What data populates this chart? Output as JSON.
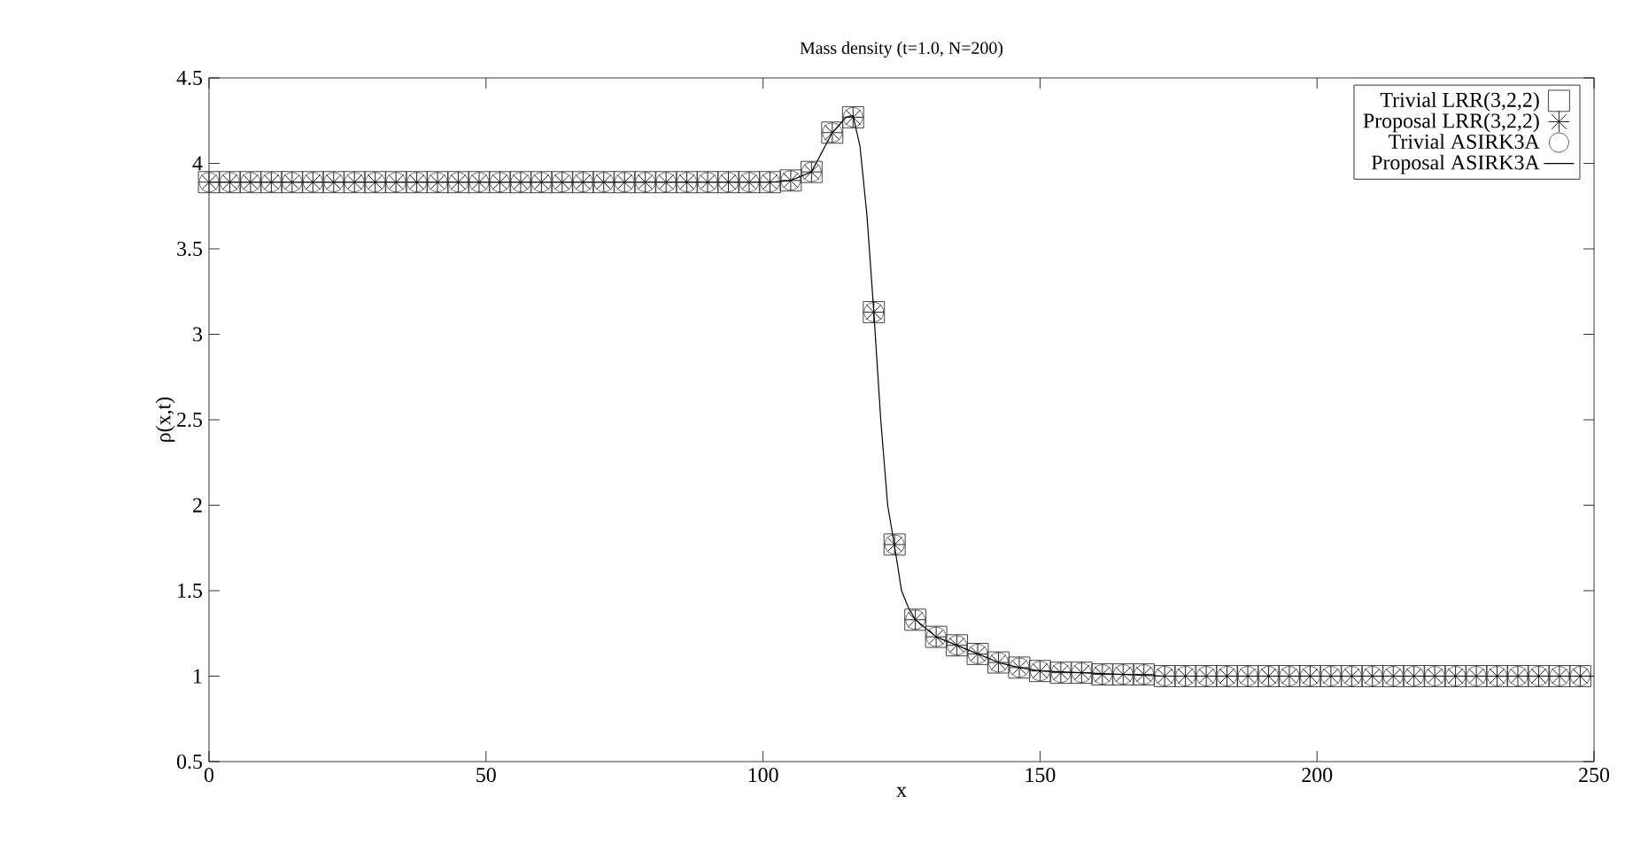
{
  "chart_data": {
    "type": "line",
    "title": "Mass density (t=1.0, N=200)",
    "xlabel": "x",
    "ylabel": "ρ(x,t)",
    "x": [
      0,
      3.75,
      7.5,
      11.25,
      15,
      18.75,
      22.5,
      26.25,
      30,
      33.75,
      37.5,
      41.25,
      45,
      48.75,
      52.5,
      56.25,
      60,
      63.75,
      67.5,
      71.25,
      75,
      78.75,
      82.5,
      86.25,
      90,
      93.75,
      97.5,
      101.25,
      105,
      108.75,
      112.5,
      116.25,
      120,
      123.75,
      127.5,
      131.25,
      135,
      138.75,
      142.5,
      146.25,
      150,
      153.75,
      157.5,
      161.25,
      165,
      168.75,
      172.5,
      176.25,
      180,
      183.75,
      187.5,
      191.25,
      195,
      198.75,
      202.5,
      206.25,
      210,
      213.75,
      217.5,
      221.25,
      225,
      228.75,
      232.5,
      236.25,
      240,
      243.75,
      247.5
    ],
    "series": [
      {
        "name": "Trivial LRR(3,2,2)",
        "type": "scatter",
        "marker": "square",
        "color": "#404040",
        "values": [
          3.89,
          3.89,
          3.89,
          3.89,
          3.89,
          3.89,
          3.89,
          3.89,
          3.89,
          3.89,
          3.89,
          3.89,
          3.89,
          3.89,
          3.89,
          3.89,
          3.89,
          3.89,
          3.89,
          3.89,
          3.89,
          3.89,
          3.89,
          3.89,
          3.89,
          3.89,
          3.89,
          3.89,
          3.9,
          3.95,
          4.18,
          4.27,
          3.13,
          1.77,
          1.33,
          1.23,
          1.18,
          1.13,
          1.08,
          1.05,
          1.03,
          1.02,
          1.02,
          1.01,
          1.01,
          1.01,
          1.0,
          1.0,
          1.0,
          1.0,
          1.0,
          1.0,
          1.0,
          1.0,
          1.0,
          1.0,
          1.0,
          1.0,
          1.0,
          1.0,
          1.0,
          1.0,
          1.0,
          1.0,
          1.0,
          1.0,
          1.0
        ]
      },
      {
        "name": "Proposal LRR(3,2,2)",
        "type": "scatter",
        "marker": "cross",
        "color": "#202020",
        "values": [
          3.89,
          3.89,
          3.89,
          3.89,
          3.89,
          3.89,
          3.89,
          3.89,
          3.89,
          3.89,
          3.89,
          3.89,
          3.89,
          3.89,
          3.89,
          3.89,
          3.89,
          3.89,
          3.89,
          3.89,
          3.89,
          3.89,
          3.89,
          3.89,
          3.89,
          3.89,
          3.89,
          3.89,
          3.9,
          3.95,
          4.18,
          4.27,
          3.13,
          1.77,
          1.33,
          1.23,
          1.18,
          1.13,
          1.08,
          1.05,
          1.03,
          1.02,
          1.02,
          1.01,
          1.01,
          1.01,
          1.0,
          1.0,
          1.0,
          1.0,
          1.0,
          1.0,
          1.0,
          1.0,
          1.0,
          1.0,
          1.0,
          1.0,
          1.0,
          1.0,
          1.0,
          1.0,
          1.0,
          1.0,
          1.0,
          1.0,
          1.0
        ]
      },
      {
        "name": "Trivial ASIRK3A",
        "type": "scatter",
        "marker": "circle",
        "color": "#606060",
        "values": [
          3.89,
          3.89,
          3.89,
          3.89,
          3.89,
          3.89,
          3.89,
          3.89,
          3.89,
          3.89,
          3.89,
          3.89,
          3.89,
          3.89,
          3.89,
          3.89,
          3.89,
          3.89,
          3.89,
          3.89,
          3.89,
          3.89,
          3.89,
          3.89,
          3.89,
          3.89,
          3.89,
          3.89,
          3.9,
          3.95,
          4.18,
          4.27,
          3.13,
          1.77,
          1.33,
          1.23,
          1.18,
          1.13,
          1.08,
          1.05,
          1.03,
          1.02,
          1.02,
          1.01,
          1.01,
          1.01,
          1.0,
          1.0,
          1.0,
          1.0,
          1.0,
          1.0,
          1.0,
          1.0,
          1.0,
          1.0,
          1.0,
          1.0,
          1.0,
          1.0,
          1.0,
          1.0,
          1.0,
          1.0,
          1.0,
          1.0,
          1.0
        ]
      },
      {
        "name": "Proposal ASIRK3A",
        "type": "line",
        "marker": "none",
        "line_style": "solid",
        "color": "#000000",
        "x": [
          0,
          101.25,
          105,
          108.75,
          112.5,
          115,
          116.25,
          117.5,
          118.75,
          120,
          121.25,
          122.5,
          123.75,
          125,
          126.25,
          127.5,
          131.25,
          135,
          138.75,
          142.5,
          146.25,
          150,
          157.5,
          165,
          172.5,
          250
        ],
        "values": [
          3.89,
          3.89,
          3.9,
          3.95,
          4.18,
          4.27,
          4.28,
          4.1,
          3.7,
          3.13,
          2.5,
          2.0,
          1.76,
          1.5,
          1.4,
          1.33,
          1.23,
          1.18,
          1.13,
          1.08,
          1.05,
          1.03,
          1.02,
          1.01,
          1.0,
          1.0
        ]
      }
    ],
    "xlim": [
      0,
      250
    ],
    "xticks": [
      0,
      50,
      100,
      150,
      200,
      250
    ],
    "ylim": [
      0.5,
      4.5
    ],
    "yticks": [
      0.5,
      1,
      1.5,
      2,
      2.5,
      3,
      3.5,
      4,
      4.5
    ],
    "grid": false,
    "legend": "top right"
  }
}
